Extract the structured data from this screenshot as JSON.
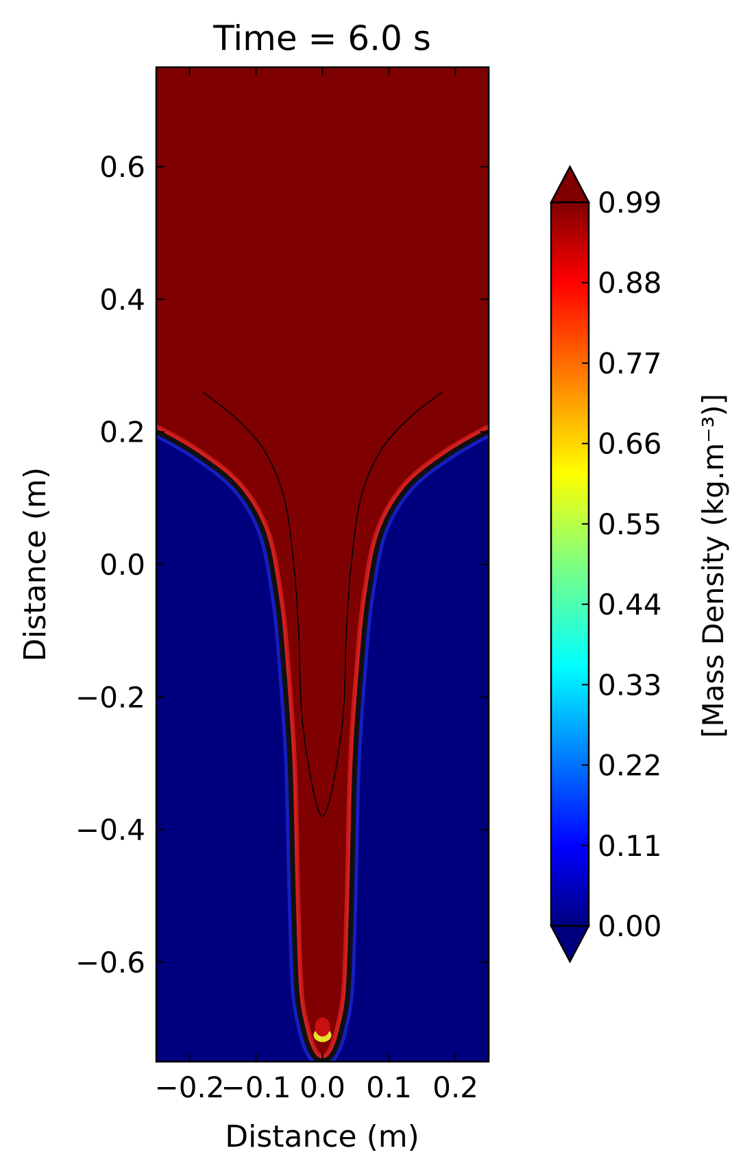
{
  "chart_data": {
    "type": "heatmap",
    "title": "Time = 6.0 s",
    "xlabel": "Distance (m)",
    "ylabel": "Distance (m)",
    "xlim": [
      -0.25,
      0.25
    ],
    "ylim": [
      -0.75,
      0.75
    ],
    "xticks": [
      -0.2,
      -0.1,
      0.0,
      0.1,
      0.2
    ],
    "xtick_labels": [
      "−0.2",
      "−0.1",
      "0.0",
      "0.1",
      "0.2"
    ],
    "yticks": [
      -0.6,
      -0.4,
      -0.2,
      0.0,
      0.2,
      0.4,
      0.6
    ],
    "ytick_labels": [
      "−0.6",
      "−0.4",
      "−0.2",
      "0.0",
      "0.2",
      "0.4",
      "0.6"
    ],
    "colorbar": {
      "label": "[Mass Density (kg.m⁻³)]",
      "colormap": "jet",
      "extend": "both",
      "range": [
        0.0,
        0.99
      ],
      "ticks": [
        0.0,
        0.11,
        0.22,
        0.33,
        0.44,
        0.55,
        0.66,
        0.77,
        0.88,
        0.99
      ],
      "tick_labels": [
        "0.00",
        "0.11",
        "0.22",
        "0.33",
        "0.44",
        "0.55",
        "0.66",
        "0.77",
        "0.88",
        "0.99"
      ]
    },
    "field": {
      "upper_value": 0.99,
      "lower_value": 0.0,
      "interface_profile": [
        {
          "x": 0.0,
          "y": -0.74
        },
        {
          "x": 0.01,
          "y": -0.73
        },
        {
          "x": 0.02,
          "y": -0.7
        },
        {
          "x": 0.03,
          "y": -0.64
        },
        {
          "x": 0.035,
          "y": -0.5
        },
        {
          "x": 0.04,
          "y": -0.3
        },
        {
          "x": 0.05,
          "y": -0.15
        },
        {
          "x": 0.06,
          "y": -0.05
        },
        {
          "x": 0.08,
          "y": 0.05
        },
        {
          "x": 0.12,
          "y": 0.12
        },
        {
          "x": 0.18,
          "y": 0.17
        },
        {
          "x": 0.25,
          "y": 0.21
        }
      ]
    }
  },
  "colors": {
    "upper_fluid": "#7f0000",
    "lower_fluid": "#00007f",
    "frame": "#000000"
  }
}
